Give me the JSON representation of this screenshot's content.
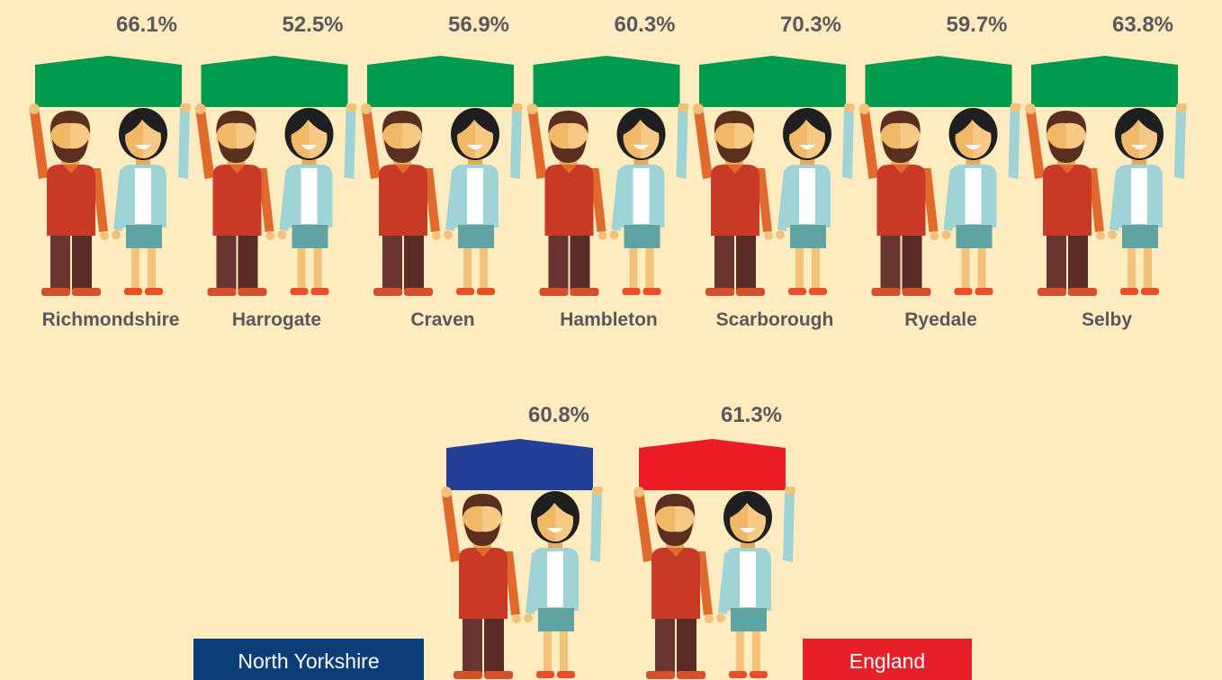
{
  "groups": [
    {
      "name": "Richmondshire",
      "label": "66.1%",
      "color": "#009a4e"
    },
    {
      "name": "Harrogate",
      "label": "52.5%",
      "color": "#009a4e"
    },
    {
      "name": "Craven",
      "label": "56.9%",
      "color": "#009a4e"
    },
    {
      "name": "Hambleton",
      "label": "60.3%",
      "color": "#009a4e"
    },
    {
      "name": "Scarborough",
      "label": "70.3%",
      "color": "#009a4e"
    },
    {
      "name": "Ryedale",
      "label": "59.7%",
      "color": "#009a4e"
    },
    {
      "name": "Selby",
      "label": "63.8%",
      "color": "#009a4e"
    }
  ],
  "comparisons": [
    {
      "label": "60.8%",
      "color": "#233f98"
    },
    {
      "label": "61.3%",
      "color": "#ec1c24"
    }
  ],
  "legend": [
    {
      "name": "North Yorkshire",
      "color": "#0b3d78"
    },
    {
      "name": "England",
      "color": "#e8202a"
    }
  ]
}
